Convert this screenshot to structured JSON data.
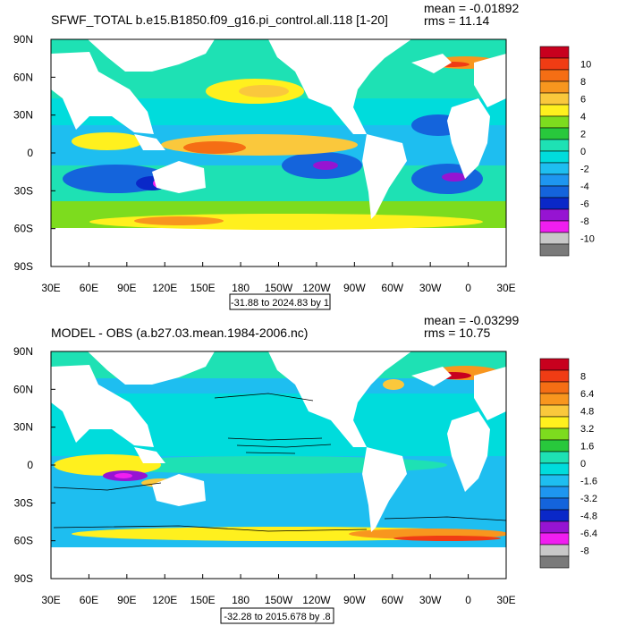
{
  "chart_data": [
    {
      "type": "heatmap",
      "subtype": "filled-contour-map",
      "title": "SFWF_TOTAL b.e15.B1850.f09_g16.pi_control.all.118 [1-20]",
      "stats": {
        "mean_label": "mean = -0.01892",
        "rms_label": "rms = 11.14"
      },
      "contour_info": "-31.88 to 2024.83 by 1",
      "x_tick_labels": [
        "30E",
        "60E",
        "90E",
        "120E",
        "150E",
        "180",
        "150W",
        "120W",
        "90W",
        "60W",
        "30W",
        "0",
        "30E"
      ],
      "y_tick_labels": [
        "90N",
        "60N",
        "30N",
        "0",
        "30S",
        "60S",
        "90S"
      ],
      "x_range": [
        30,
        390
      ],
      "y_range": [
        -90,
        90
      ],
      "colorbar_labels": [
        "10",
        "8",
        "6",
        "4",
        "2",
        "0",
        "-2",
        "-4",
        "-6",
        "-8",
        "-10"
      ],
      "colorbar_colors": [
        "#c8001e",
        "#f03c14",
        "#f56e14",
        "#f8961e",
        "#fac83c",
        "#fff01e",
        "#7ddc1e",
        "#28c83c",
        "#1ee1b4",
        "#00dcdc",
        "#1ebef0",
        "#1e96f0",
        "#1464dc",
        "#0a28c8",
        "#9614d2",
        "#f01ef0",
        "#c8c8c8",
        "#7a7a7a"
      ],
      "grid": false
    },
    {
      "type": "heatmap",
      "subtype": "filled-contour-map",
      "title": "MODEL - OBS (a.b27.03.mean.1984-2006.nc)",
      "stats": {
        "mean_label": "mean = -0.03299",
        "rms_label": "rms = 10.75"
      },
      "contour_info": "-32.28 to 2015.678 by .8",
      "x_tick_labels": [
        "30E",
        "60E",
        "90E",
        "120E",
        "150E",
        "180",
        "150W",
        "120W",
        "90W",
        "60W",
        "30W",
        "0",
        "30E"
      ],
      "y_tick_labels": [
        "90N",
        "60N",
        "30N",
        "0",
        "30S",
        "60S",
        "90S"
      ],
      "x_range": [
        30,
        390
      ],
      "y_range": [
        -90,
        90
      ],
      "colorbar_labels": [
        "8",
        "6.4",
        "4.8",
        "3.2",
        "1.6",
        "0",
        "-1.6",
        "-3.2",
        "-4.8",
        "-6.4",
        "-8"
      ],
      "colorbar_colors": [
        "#c8001e",
        "#f03c14",
        "#f56e14",
        "#f8961e",
        "#fac83c",
        "#fff01e",
        "#7ddc1e",
        "#28c83c",
        "#1ee1b4",
        "#00dcdc",
        "#1ebef0",
        "#1e96f0",
        "#1464dc",
        "#0a28c8",
        "#9614d2",
        "#f01ef0",
        "#c8c8c8",
        "#7a7a7a"
      ],
      "grid": false
    }
  ]
}
